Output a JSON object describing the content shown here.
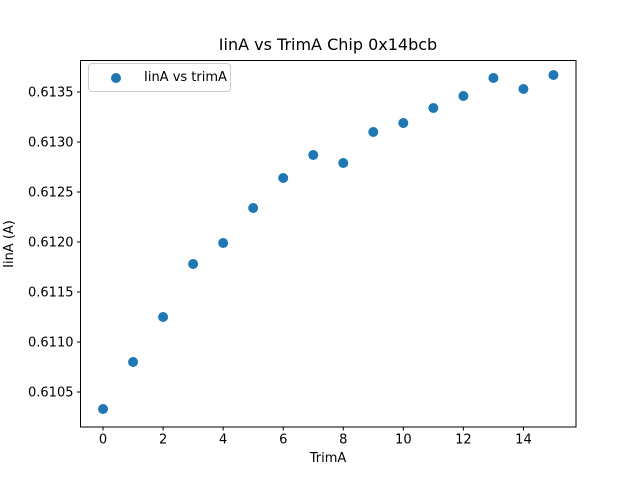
{
  "figure": {
    "background": "#ffffff",
    "text_color": "#000000",
    "spine_color": "#000000",
    "legend_border_color": "#cccccc"
  },
  "chart_data": {
    "type": "scatter",
    "title": "IinA vs TrimA Chip 0x14bcb",
    "xlabel": "TrimA",
    "ylabel": "IinA (A)",
    "grid": false,
    "legend": {
      "label": "IinA vs trimA",
      "position": "upper left",
      "marker_icon": "circle-marker-icon",
      "marker_color": "#1f77b4"
    },
    "xlim": [
      -0.75,
      15.75
    ],
    "ylim": [
      0.61015,
      0.613815
    ],
    "x_ticks": [
      0,
      2,
      4,
      6,
      8,
      10,
      12,
      14
    ],
    "x_tick_labels": [
      "0",
      "2",
      "4",
      "6",
      "8",
      "10",
      "12",
      "14"
    ],
    "y_ticks": [
      0.6105,
      0.611,
      0.6115,
      0.612,
      0.6125,
      0.613,
      0.6135
    ],
    "y_tick_labels": [
      "0.6105",
      "0.6110",
      "0.6115",
      "0.6120",
      "0.6125",
      "0.6130",
      "0.6135"
    ],
    "series": [
      {
        "name": "IinA vs trimA",
        "marker": "circle",
        "color": "#1f77b4",
        "x": [
          0,
          1,
          2,
          3,
          4,
          5,
          6,
          7,
          8,
          9,
          10,
          11,
          12,
          13,
          14,
          15
        ],
        "y": [
          0.61033,
          0.6108,
          0.61125,
          0.61178,
          0.61199,
          0.61234,
          0.61264,
          0.61287,
          0.61279,
          0.6131,
          0.61319,
          0.61334,
          0.61346,
          0.61364,
          0.61353,
          0.61367
        ]
      }
    ]
  }
}
